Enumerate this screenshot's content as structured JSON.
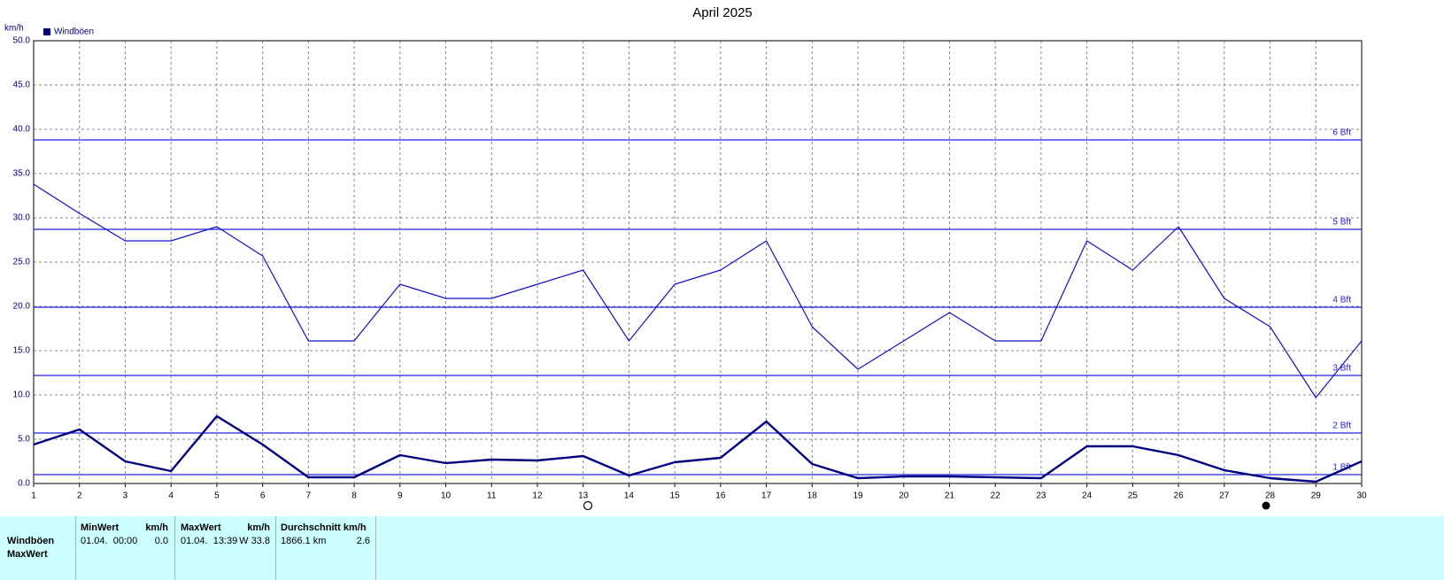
{
  "chart_data": {
    "type": "line",
    "title": "April 2025",
    "y_label": "km/h",
    "x": [
      1,
      2,
      3,
      4,
      5,
      6,
      7,
      8,
      9,
      10,
      11,
      12,
      13,
      14,
      15,
      16,
      17,
      18,
      19,
      20,
      21,
      22,
      23,
      24,
      25,
      26,
      27,
      28,
      29,
      30
    ],
    "xlim": [
      1,
      30
    ],
    "xticks": [
      1,
      2,
      3,
      4,
      5,
      6,
      7,
      8,
      9,
      10,
      11,
      12,
      13,
      14,
      15,
      16,
      17,
      18,
      19,
      20,
      21,
      22,
      23,
      24,
      25,
      26,
      27,
      28,
      29,
      30
    ],
    "ylim": [
      0,
      50
    ],
    "yticks": [
      {
        "value": 0,
        "label": "0.0"
      },
      {
        "value": 5,
        "label": "5.0"
      },
      {
        "value": 10,
        "label": "10.0"
      },
      {
        "value": 15,
        "label": "15.0"
      },
      {
        "value": 20,
        "label": "20.0"
      },
      {
        "value": 25,
        "label": "25.0"
      },
      {
        "value": 30,
        "label": "30.0"
      },
      {
        "value": 35,
        "label": "35.0"
      },
      {
        "value": 40,
        "label": "40.0"
      },
      {
        "value": 45,
        "label": "45.0"
      },
      {
        "value": 50,
        "label": "50.0"
      }
    ],
    "grid": true,
    "legend": "top-left",
    "series": [
      {
        "name": "Windböen",
        "color": "#1010d0",
        "values": [
          33.8,
          30.5,
          27.4,
          27.4,
          29.0,
          25.7,
          16.1,
          16.1,
          22.5,
          20.9,
          20.9,
          22.5,
          24.1,
          16.1,
          22.5,
          24.1,
          27.4,
          17.7,
          12.9,
          16.1,
          19.3,
          16.1,
          16.1,
          27.4,
          24.1,
          29.0,
          20.9,
          17.7,
          9.7,
          16.1
        ]
      },
      {
        "color": "#000080",
        "values": [
          4.4,
          6.1,
          2.5,
          1.4,
          7.6,
          4.4,
          0.7,
          0.7,
          3.2,
          2.3,
          2.7,
          2.6,
          3.1,
          0.9,
          2.4,
          2.9,
          7.0,
          2.2,
          0.6,
          0.8,
          0.8,
          0.7,
          0.6,
          4.2,
          4.2,
          3.2,
          1.5,
          0.6,
          0.2,
          2.5
        ]
      }
    ],
    "reference_lines": [
      {
        "value": 1.0,
        "label": "1 Bft"
      },
      {
        "value": 5.7,
        "label": "2 Bft"
      },
      {
        "value": 12.2,
        "label": "3 Bft"
      },
      {
        "value": 19.9,
        "label": "4 Bft"
      },
      {
        "value": 28.7,
        "label": "5 Bft"
      },
      {
        "value": 38.8,
        "label": "6 Bft"
      }
    ],
    "reference_color": "#2020e0"
  },
  "table": {
    "header": [
      "MinWert",
      "km/h",
      "MaxWert",
      "km/h",
      "Durchschnitt km/h"
    ],
    "rows": [
      [
        "Windböen",
        "01.04.  00:00",
        "0.0",
        "01.04.  13:39",
        "W 33.8",
        "1866.1 km",
        "2.6"
      ],
      [
        "MaxWert"
      ]
    ]
  }
}
